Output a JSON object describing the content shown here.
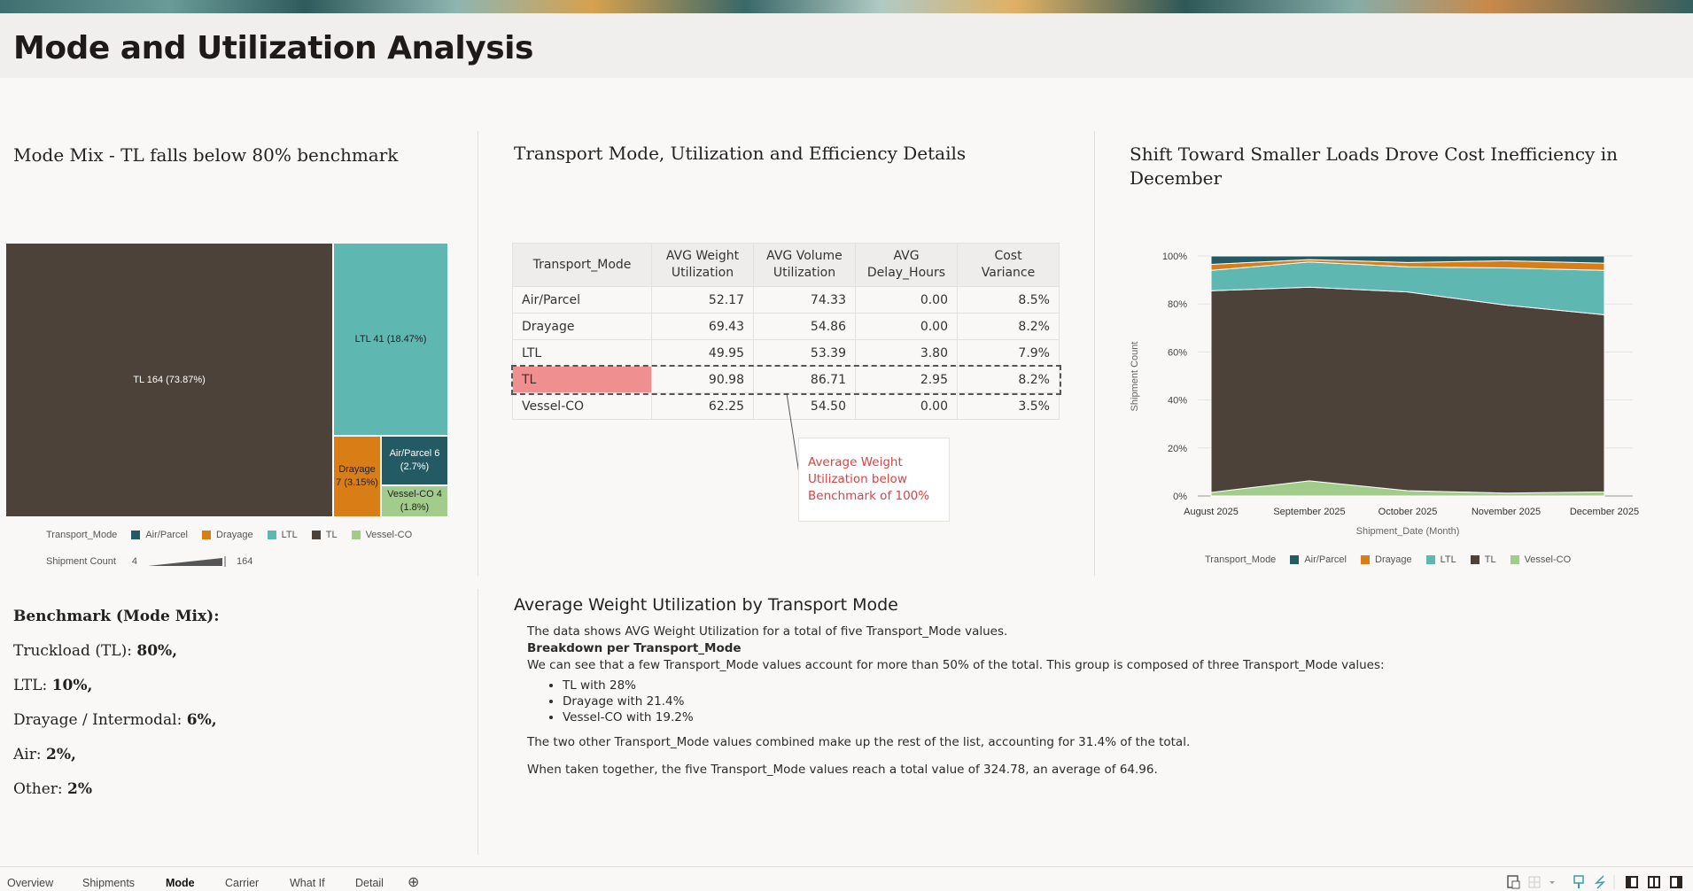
{
  "page": {
    "title": "Mode and Utilization Analysis"
  },
  "colors": {
    "Air/Parcel": "#235a63",
    "Drayage": "#d97d17",
    "LTL": "#5fb7b1",
    "TL": "#4d4239",
    "Vessel-CO": "#a2cc8c",
    "highlight": "#ef8f8f",
    "callout": "#d64545"
  },
  "treemap": {
    "title": "Mode Mix - TL falls below 80% benchmark",
    "tiles": [
      {
        "mode": "TL",
        "label": "TL 164 (73.87%)",
        "count": 164,
        "pct": 73.87
      },
      {
        "mode": "LTL",
        "label": "LTL 41 (18.47%)",
        "count": 41,
        "pct": 18.47
      },
      {
        "mode": "Drayage",
        "label": "Drayage 7 (3.15%)",
        "count": 7,
        "pct": 3.15
      },
      {
        "mode": "Air/Parcel",
        "label": "Air/Parcel 6 (2.7%)",
        "count": 6,
        "pct": 2.7
      },
      {
        "mode": "Vessel-CO",
        "label": "Vessel-CO 4 (1.8%)",
        "count": 4,
        "pct": 1.8
      }
    ],
    "legend_title": "Transport_Mode",
    "legend": [
      "Air/Parcel",
      "Drayage",
      "LTL",
      "TL",
      "Vessel-CO"
    ],
    "size_legend": {
      "title": "Shipment Count",
      "min": "4",
      "max": "164"
    }
  },
  "table": {
    "title": "Transport Mode, Utilization and Efficiency Details",
    "headers": [
      "Transport_Mode",
      "AVG Weight Utilization",
      "AVG Volume Utilization",
      "AVG Delay_Hours",
      "Cost Variance"
    ],
    "rows": [
      [
        "Air/Parcel",
        "52.17",
        "74.33",
        "0.00",
        "8.5%"
      ],
      [
        "Drayage",
        "69.43",
        "54.86",
        "0.00",
        "8.2%"
      ],
      [
        "LTL",
        "49.95",
        "53.39",
        "3.80",
        "7.9%"
      ],
      [
        "TL",
        "90.98",
        "86.71",
        "2.95",
        "8.2%"
      ],
      [
        "Vessel-CO",
        "62.25",
        "54.50",
        "0.00",
        "3.5%"
      ]
    ],
    "callout": "Average Weight Utilization below Benchmark of 100%"
  },
  "chart_data": {
    "type": "area",
    "stacked": "percent",
    "title": "Shift Toward Smaller Loads Drove Cost Inefficiency in December",
    "xlabel": "Shipment_Date (Month)",
    "ylabel": "Shipment Count",
    "categories": [
      "August 2025",
      "September 2025",
      "October 2025",
      "November 2025",
      "December 2025"
    ],
    "yticks": [
      "0%",
      "20%",
      "40%",
      "60%",
      "80%",
      "100%"
    ],
    "ylim": [
      0,
      100
    ],
    "legend_title": "Transport_Mode",
    "legend_position": "bottom",
    "series": [
      {
        "name": "Vessel-CO",
        "values": [
          1.5,
          6.3,
          2.2,
          1.2,
          1.7
        ]
      },
      {
        "name": "TL",
        "values": [
          84,
          80.7,
          82.8,
          78.3,
          73.8
        ]
      },
      {
        "name": "LTL",
        "values": [
          8.5,
          10.5,
          10.5,
          15.5,
          18.5
        ]
      },
      {
        "name": "Drayage",
        "values": [
          2.5,
          1,
          1.8,
          3,
          3
        ]
      },
      {
        "name": "Air/Parcel",
        "values": [
          3.5,
          1.5,
          2.7,
          2,
          3
        ]
      }
    ],
    "legend": [
      "Air/Parcel",
      "Drayage",
      "LTL",
      "TL",
      "Vessel-CO"
    ]
  },
  "benchmark": {
    "title": "Benchmark (Mode Mix):",
    "items": [
      {
        "label": "Truckload (TL): ",
        "value": "80%,"
      },
      {
        "label": "LTL: ",
        "value": "10%,"
      },
      {
        "label": "Drayage / Intermodal: ",
        "value": "6%,"
      },
      {
        "label": "Air: ",
        "value": "2%,"
      },
      {
        "label": "Other: ",
        "value": "2%"
      }
    ]
  },
  "narrative": {
    "title": "Average Weight Utilization by Transport Mode",
    "intro": "The data shows AVG Weight Utilization for a total of five Transport_Mode values.",
    "subhead": "Breakdown per Transport_Mode",
    "para1": "We can see that a few Transport_Mode values account for more than 50% of the total. This group is composed of three Transport_Mode values:",
    "bullets": [
      "TL with 28%",
      "Drayage with 21.4%",
      "Vessel-CO with 19.2%"
    ],
    "para2": "The two other Transport_Mode values combined make up the rest of the list, accounting for 31.4% of the total.",
    "para3": "When taken together, the five Transport_Mode values reach a total value of 324.78, an average of 64.96."
  },
  "tabs": [
    {
      "label": "Overview"
    },
    {
      "label": "Shipments"
    },
    {
      "label": "Mode",
      "active": true
    },
    {
      "label": "Carrier"
    },
    {
      "label": "What If"
    },
    {
      "label": "Detail"
    }
  ]
}
